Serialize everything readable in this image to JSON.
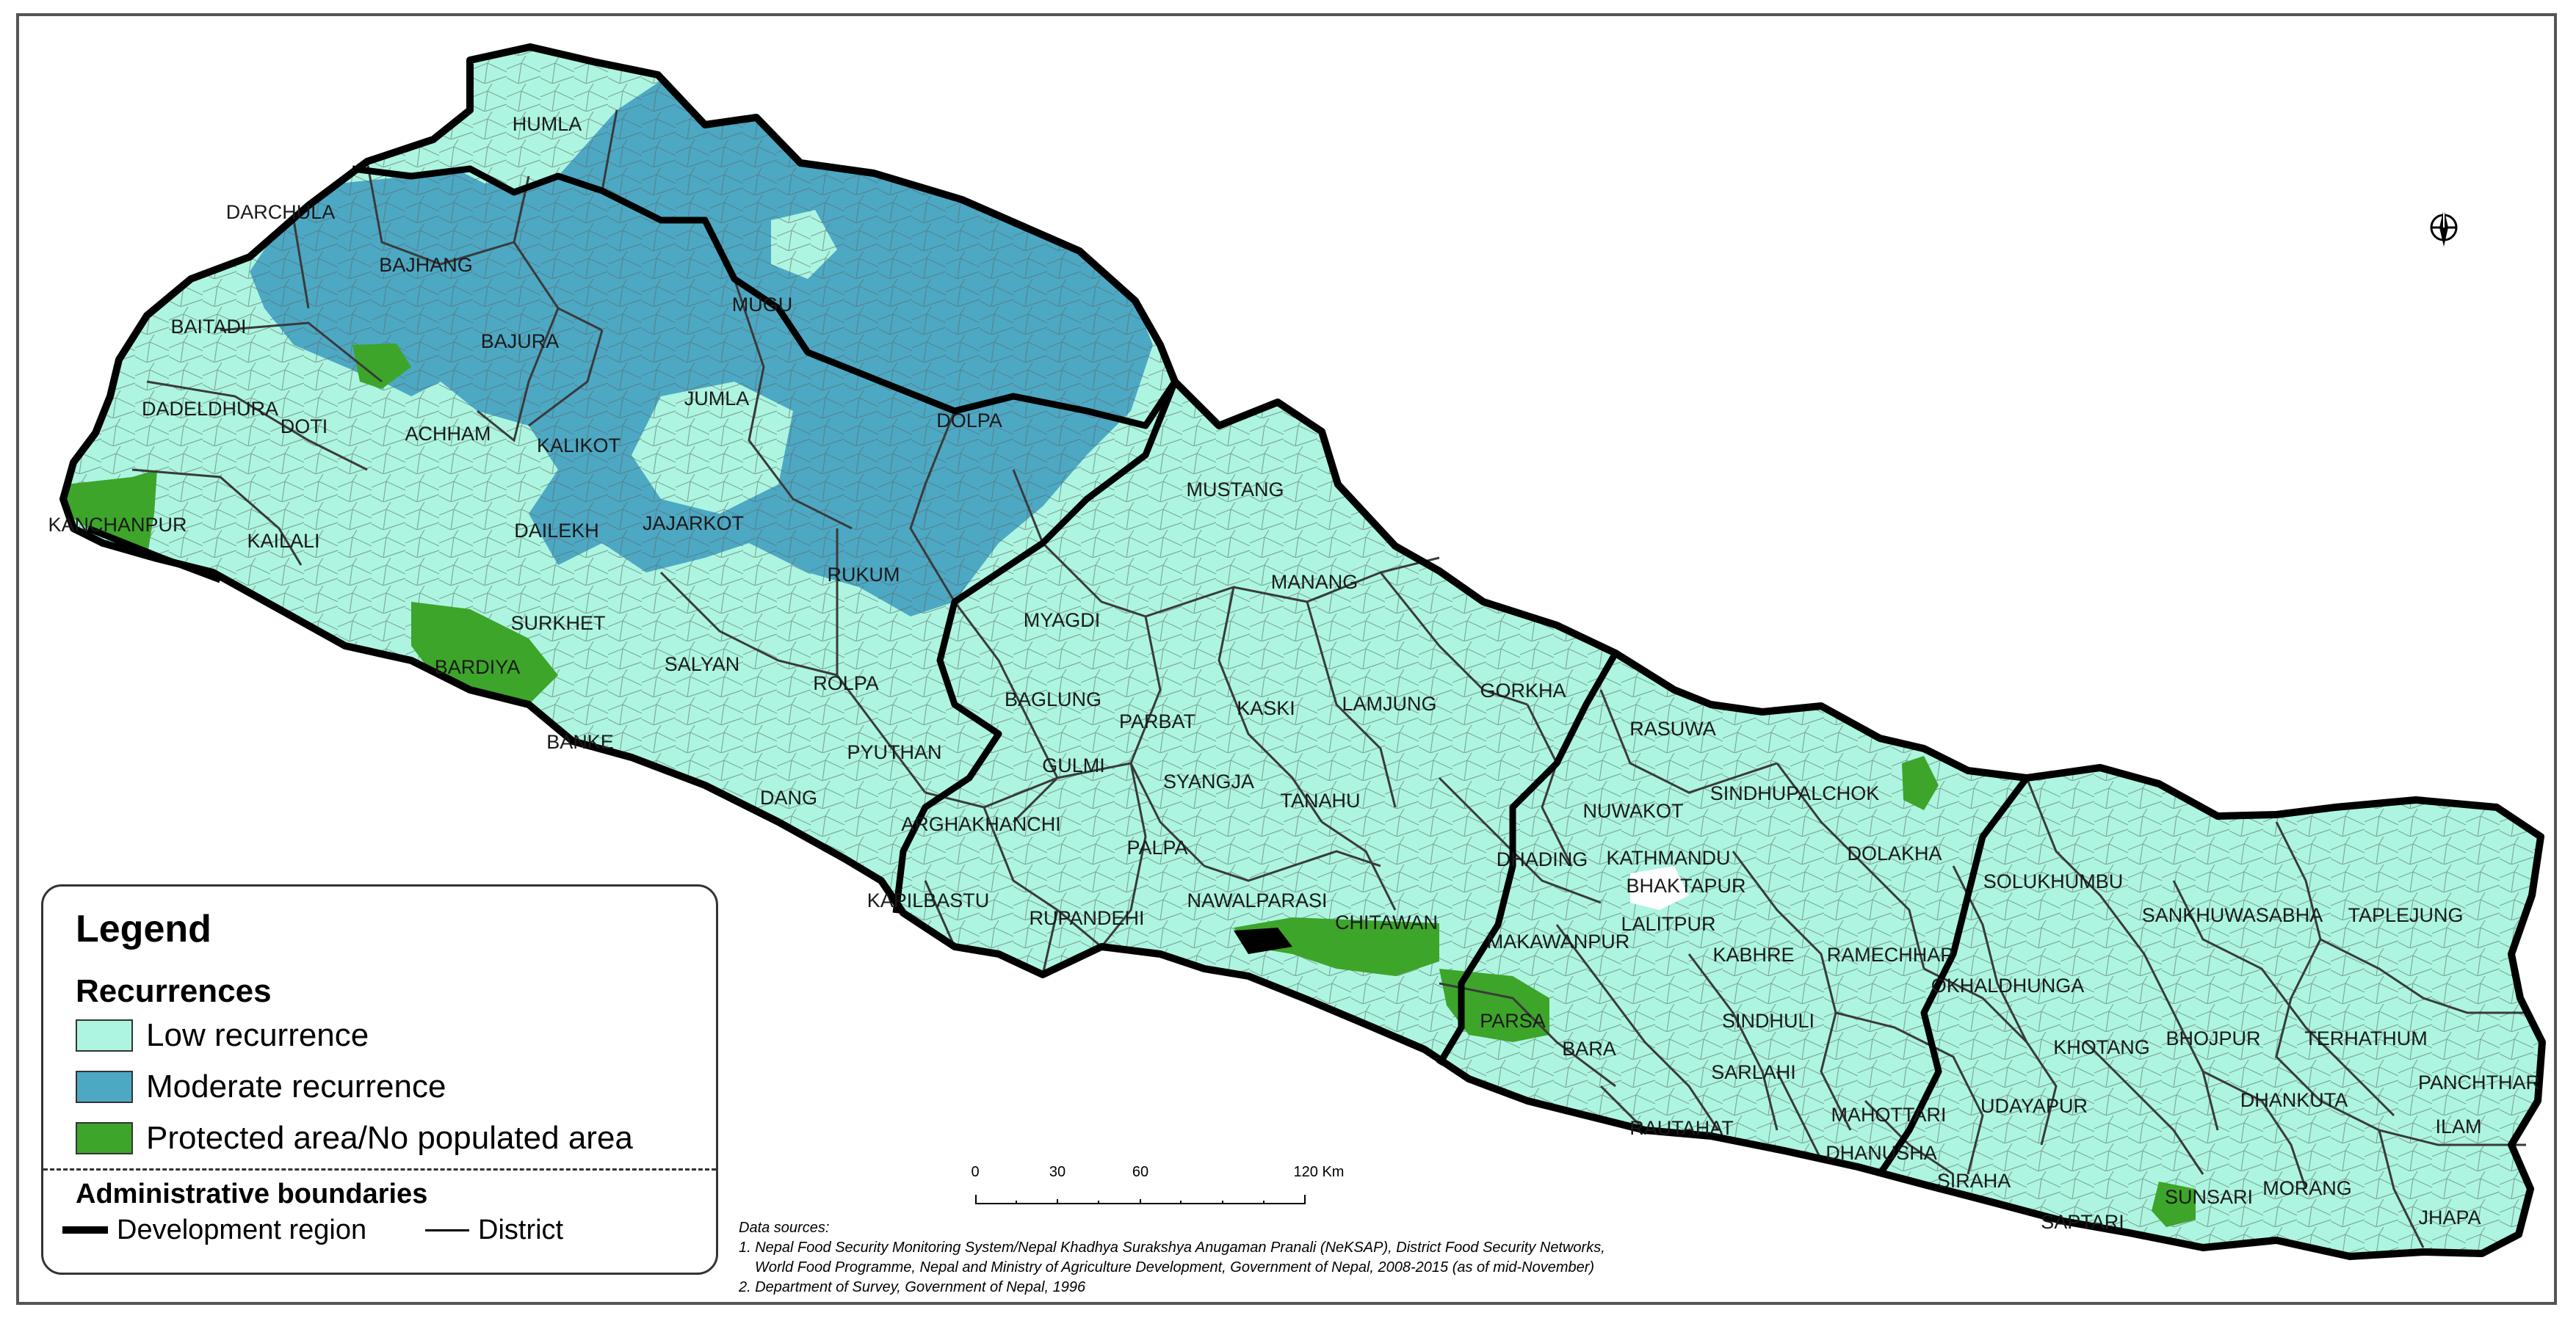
{
  "colors": {
    "low": "#adf5e0",
    "moderate": "#4da8c4",
    "protected": "#3da52a",
    "boundary": "#000000",
    "district_line": "#3a3a3a"
  },
  "districts": [
    "HUMLA",
    "DARCHULA",
    "BAJHANG",
    "MUGU",
    "BAITADI",
    "BAJURA",
    "JUMLA",
    "DOLPA",
    "DADELDHURA",
    "DOTI",
    "ACHHAM",
    "KALIKOT",
    "KANCHANPUR",
    "KAILALI",
    "DAILEKH",
    "JAJARKOT",
    "MUSTANG",
    "RUKUM",
    "MANANG",
    "SURKHET",
    "MYAGDI",
    "BARDIYA",
    "SALYAN",
    "ROLPA",
    "GORKHA",
    "BAGLUNG",
    "PARBAT",
    "KASKI",
    "LAMJUNG",
    "RASUWA",
    "BANKE",
    "PYUTHAN",
    "GULMI",
    "SYANGJA",
    "TANAHU",
    "SINDHUPALCHOK",
    "NUWAKOT",
    "DANG",
    "ARGHAKHANCHI",
    "PALPA",
    "DHADING",
    "KATHMANDU",
    "DOLAKHA",
    "BHAKTAPUR",
    "LALITPUR",
    "KAPILBASTU",
    "NAWALPARASI",
    "RUPANDEHI",
    "CHITAWAN",
    "MAKAWANPUR",
    "KABHRE",
    "RAMECHHAP",
    "SOLUKHUMBU",
    "SANKHUWASABHA",
    "TAPLEJUNG",
    "OKHALDHUNGA",
    "PARSA",
    "KHOTANG",
    "BHOJPUR",
    "TERHATHUM",
    "SINDHULI",
    "BARA",
    "SARLAHI",
    "PANCHTHAR",
    "DHANKUTA",
    "UDAYAPUR",
    "MAHOTTARI",
    "RAUTAHAT",
    "ILAM",
    "DHANUSHA",
    "SIRAHA",
    "MORANG",
    "SUNSARI",
    "SAPTARI",
    "JHAPA"
  ],
  "legend": {
    "title": "Legend",
    "recurrences_heading": "Recurrences",
    "items": [
      {
        "label": "Low recurrence",
        "color": "#adf5e0"
      },
      {
        "label": "Moderate recurrence",
        "color": "#4da8c4"
      },
      {
        "label": "Protected area/No populated area",
        "color": "#3da52a"
      }
    ],
    "boundaries_heading": "Administrative boundaries",
    "boundary_items": [
      {
        "label": "Development region"
      },
      {
        "label": "District"
      }
    ]
  },
  "scale": {
    "ticks": [
      "0",
      "30",
      "60",
      "120 Km"
    ],
    "tick_values_km": [
      0,
      30,
      60,
      120
    ]
  },
  "sources": {
    "heading": "Data sources:",
    "line1": "1. Nepal Food Security Monitoring System/Nepal Khadhya Surakshya Anugaman Pranali (NeKSAP), District Food Security Networks,",
    "line2": "World Food Programme, Nepal and Ministry of Agriculture Development, Government of Nepal, 2008-2015 (as of mid-November)",
    "line3": "2. Department of Survey, Government of Nepal, 1996"
  },
  "compass_icon": "north-arrow-icon"
}
